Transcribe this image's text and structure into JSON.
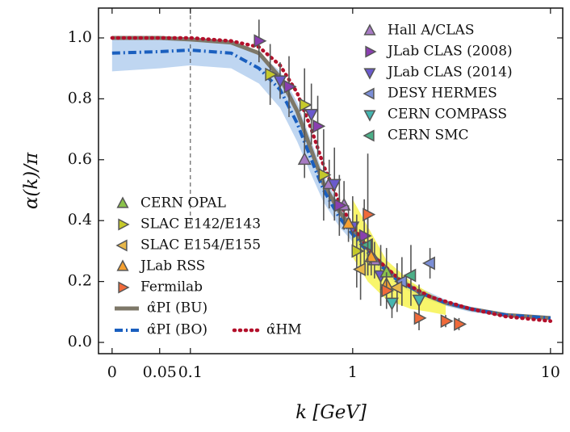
{
  "chart_data": {
    "type": "scatter",
    "xlabel": "k [GeV]",
    "ylabel": "α(k)/π",
    "xlim": [
      -0.01,
      11.5
    ],
    "ylim": [
      -0.037,
      1.098
    ],
    "xticks": [
      0,
      0.05,
      0.1,
      1,
      10
    ],
    "yticks": [
      {
        "value": 0,
        "label": "0.0"
      },
      0.2,
      0.4,
      0.6,
      0.8,
      {
        "value": 1,
        "label": "1.0"
      }
    ],
    "vline": 0.1,
    "bands": [
      {
        "color": "#a9c8ec",
        "x": [
          0,
          0.05,
          0.1,
          0.2,
          0.3,
          0.4,
          0.5,
          0.6,
          0.7,
          0.85,
          1,
          1.3,
          1.7,
          2.2,
          3,
          4,
          6,
          10
        ],
        "lower": [
          0.89,
          0.9,
          0.91,
          0.9,
          0.85,
          0.77,
          0.66,
          0.55,
          0.46,
          0.38,
          0.33,
          0.25,
          0.19,
          0.15,
          0.12,
          0.1,
          0.085,
          0.075
        ],
        "upper": [
          1.0,
          1.0,
          1.0,
          0.99,
          0.95,
          0.89,
          0.79,
          0.66,
          0.55,
          0.45,
          0.38,
          0.29,
          0.22,
          0.18,
          0.14,
          0.115,
          0.095,
          0.085
        ]
      },
      {
        "color": "#f5f23a",
        "x": [
          1,
          1.2,
          1.5,
          2,
          2.5,
          3
        ],
        "lower": [
          0.28,
          0.2,
          0.14,
          0.11,
          0.1,
          0.09
        ],
        "upper": [
          0.47,
          0.38,
          0.27,
          0.2,
          0.16,
          0.13
        ]
      }
    ],
    "curves": [
      {
        "name": "α̂PI (BU)",
        "color": "#7d7768",
        "style": "solid",
        "x": [
          0,
          0.05,
          0.1,
          0.2,
          0.3,
          0.4,
          0.5,
          0.6,
          0.7,
          0.85,
          1,
          1.3,
          1.7,
          2.2,
          3,
          4,
          6,
          10
        ],
        "values": [
          1.0,
          1.0,
          0.995,
          0.985,
          0.95,
          0.87,
          0.76,
          0.63,
          0.52,
          0.43,
          0.37,
          0.28,
          0.21,
          0.165,
          0.13,
          0.11,
          0.09,
          0.08
        ]
      },
      {
        "name": "α̂PI (BO)",
        "color": "#1a5fbf",
        "style": "dashdot",
        "x": [
          0,
          0.05,
          0.1,
          0.2,
          0.3,
          0.4,
          0.5,
          0.6,
          0.7,
          0.85,
          1,
          1.3,
          1.7,
          2.2,
          3,
          4,
          6,
          10
        ],
        "values": [
          0.95,
          0.955,
          0.96,
          0.95,
          0.9,
          0.83,
          0.72,
          0.6,
          0.5,
          0.41,
          0.355,
          0.27,
          0.205,
          0.165,
          0.13,
          0.11,
          0.09,
          0.08
        ]
      },
      {
        "name": "α̂HM",
        "color": "#b3102b",
        "style": "dotted",
        "x": [
          0,
          0.05,
          0.1,
          0.2,
          0.3,
          0.4,
          0.5,
          0.6,
          0.7,
          0.85,
          1,
          1.3,
          1.8,
          2.5,
          4,
          6,
          10
        ],
        "values": [
          1.0,
          1.0,
          1.0,
          0.99,
          0.97,
          0.91,
          0.82,
          0.7,
          0.58,
          0.46,
          0.38,
          0.28,
          0.2,
          0.15,
          0.11,
          0.085,
          0.07
        ]
      }
    ],
    "series": [
      {
        "name": "Hall A/CLAS",
        "color": "#a77bc4",
        "marker": "^",
        "x": [
          0.55,
          0.75,
          0.9,
          1.3
        ],
        "values": [
          0.6,
          0.52,
          0.45,
          0.27
        ],
        "errors": [
          0.06,
          0.08,
          0.08,
          0.06
        ]
      },
      {
        "name": "JLab CLAS (2008)",
        "color": "#8a3fb0",
        "marker": ">",
        "x": [
          0.3,
          0.45,
          0.65,
          0.85,
          1.15
        ],
        "values": [
          0.99,
          0.84,
          0.71,
          0.45,
          0.35
        ],
        "errors": [
          0.07,
          0.1,
          0.1,
          0.1,
          0.12
        ]
      },
      {
        "name": "JLab CLAS (2014)",
        "color": "#6a5acd",
        "marker": "v",
        "x": [
          0.4,
          0.6,
          0.8,
          1.0,
          1.4
        ],
        "values": [
          0.86,
          0.75,
          0.52,
          0.38,
          0.22
        ],
        "errors": [
          0.06,
          0.1,
          0.12,
          0.1,
          0.1
        ]
      },
      {
        "name": "DESY HERMES",
        "color": "#7b8ed6",
        "marker": "<",
        "x": [
          2.5,
          1.8
        ],
        "values": [
          0.26,
          0.2
        ],
        "errors": [
          0.05,
          0.08
        ]
      },
      {
        "name": "CERN COMPASS",
        "color": "#45b5b0",
        "marker": "v",
        "x": [
          1.6,
          2.2
        ],
        "values": [
          0.13,
          0.14
        ],
        "errors": [
          0.05,
          0.05
        ]
      },
      {
        "name": "CERN SMC",
        "color": "#4caf88",
        "marker": "<",
        "x": [
          1.2,
          2.0
        ],
        "values": [
          0.32,
          0.22
        ],
        "errors": [
          0.1,
          0.1
        ]
      },
      {
        "name": "CERN OPAL",
        "color": "#8bc34a",
        "marker": "^",
        "x": [
          1.5
        ],
        "values": [
          0.23
        ],
        "errors": [
          0.08
        ]
      },
      {
        "name": "SLAC E142/E143",
        "color": "#c5c92a",
        "marker": ">",
        "x": [
          0.35,
          0.55,
          0.7,
          1.05
        ],
        "values": [
          0.88,
          0.78,
          0.55,
          0.3
        ],
        "errors": [
          0.1,
          0.12,
          0.15,
          0.12
        ]
      },
      {
        "name": "SLAC E154/E155",
        "color": "#e8b84a",
        "marker": "<",
        "x": [
          1.1,
          1.7
        ],
        "values": [
          0.24,
          0.18
        ],
        "errors": [
          0.1,
          0.08
        ]
      },
      {
        "name": "JLab RSS",
        "color": "#f5a030",
        "marker": "^",
        "x": [
          0.95,
          1.25,
          1.5
        ],
        "values": [
          0.39,
          0.28,
          0.19
        ],
        "errors": [
          0.06,
          0.06,
          0.04
        ]
      },
      {
        "name": "Fermilab",
        "color": "#f06a3a",
        "marker": ">",
        "x": [
          1.2,
          1.5,
          2.2,
          3.0,
          3.5
        ],
        "values": [
          0.42,
          0.17,
          0.08,
          0.07,
          0.06
        ],
        "errors": [
          0.2,
          0.06,
          0.04,
          0.02,
          0.02
        ]
      }
    ]
  }
}
